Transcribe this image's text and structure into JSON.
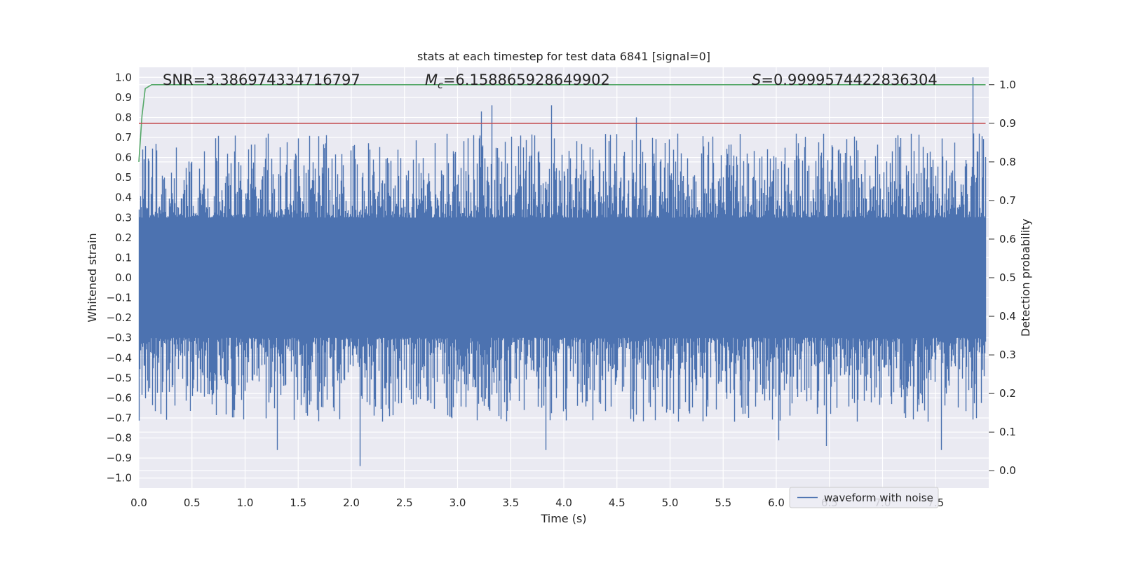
{
  "chart_data": {
    "type": "line",
    "title": "stats at each timestep for test data 6841 [signal=0]",
    "xlabel": "Time (s)",
    "ylabel": "Whitened strain",
    "y2label": "Detection probability",
    "xlim": [
      0.0,
      8.0
    ],
    "ylim": [
      -1.05,
      1.05
    ],
    "y2lim": [
      -0.045,
      1.045
    ],
    "x_ticks": [
      "0.0",
      "0.5",
      "1.0",
      "1.5",
      "2.0",
      "2.5",
      "3.0",
      "3.5",
      "4.0",
      "4.5",
      "5.0",
      "5.5",
      "6.0",
      "6.5",
      "7.0",
      "7.5"
    ],
    "y_ticks": [
      "1.0",
      "0.9",
      "0.8",
      "0.7",
      "0.6",
      "0.5",
      "0.4",
      "0.3",
      "0.2",
      "0.1",
      "0.0",
      "−0.1",
      "−0.2",
      "−0.3",
      "−0.4",
      "−0.5",
      "−0.6",
      "−0.7",
      "−0.8",
      "−0.9",
      "−1.0"
    ],
    "y2_ticks": [
      "1.0",
      "0.9",
      "0.8",
      "0.7",
      "0.6",
      "0.5",
      "0.4",
      "0.3",
      "0.2",
      "0.1",
      "0.0"
    ],
    "grid": true,
    "legend_position": "bottom-right",
    "annotations": {
      "snr": "SNR=3.386974334716797",
      "mc_symbol": "M",
      "mc_sub": "c",
      "mc_value": "=6.158865928649902",
      "s_symbol": "S",
      "s_value": "=0.9999574422836304"
    },
    "series": [
      {
        "name": "waveform with noise",
        "axis": "left",
        "color": "#4c72b0",
        "x_range": [
          0.0,
          7.97
        ],
        "y_envelope": [
          -0.94,
          1.0
        ],
        "peaks": [
          {
            "x": 3.22,
            "y": 0.83
          },
          {
            "x": 3.32,
            "y": 0.86
          },
          {
            "x": 3.88,
            "y": 0.86
          },
          {
            "x": 4.68,
            "y": 0.8
          },
          {
            "x": 7.85,
            "y": 1.0
          }
        ],
        "troughs": [
          {
            "x": 1.3,
            "y": -0.86
          },
          {
            "x": 2.08,
            "y": -0.94
          },
          {
            "x": 3.83,
            "y": -0.86
          },
          {
            "x": 6.47,
            "y": -0.84
          },
          {
            "x": 7.55,
            "y": -0.86
          }
        ]
      },
      {
        "name": "",
        "axis": "right",
        "color": "#55a868",
        "x": [
          0.0,
          0.03,
          0.06,
          0.12,
          7.97
        ],
        "y": [
          0.8,
          0.92,
          0.99,
          1.0,
          1.0
        ]
      },
      {
        "name": "",
        "axis": "right",
        "color": "#c44e52",
        "x": [
          0.0,
          7.97
        ],
        "y": [
          0.9,
          0.9
        ]
      }
    ]
  },
  "colors": {
    "plot_bg": "#eaeaf2",
    "grid": "#ffffff",
    "waveform": "#4c72b0",
    "probability": "#55a868",
    "threshold": "#c44e52"
  }
}
